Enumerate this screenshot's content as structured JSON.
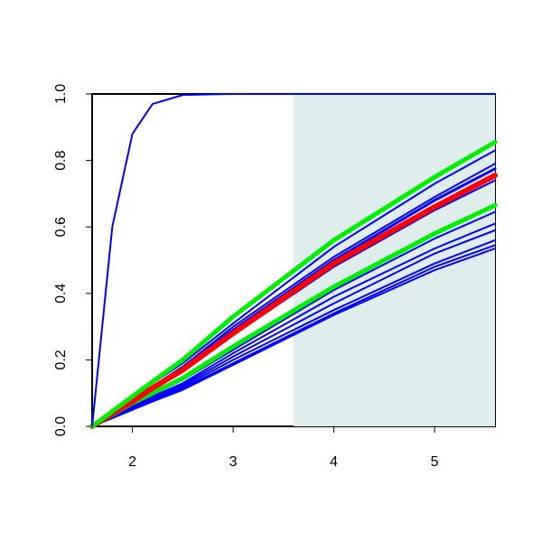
{
  "chart_data": {
    "type": "line",
    "x": [
      1.6,
      1.8,
      2,
      2.2,
      2.5,
      3,
      4,
      5,
      5.6
    ],
    "xlim": [
      1.6,
      5.6
    ],
    "ylim": [
      0,
      1
    ],
    "xticks": [
      2,
      3,
      4,
      5
    ],
    "yticks": [
      {
        "value": 0,
        "label": "0.0"
      },
      0.2,
      0.4,
      0.6,
      0.8,
      {
        "value": 1,
        "label": "1.0"
      }
    ],
    "shade": {
      "xlim": [
        3.6,
        5.6
      ],
      "color": "#e0eded"
    },
    "series": [
      {
        "color": "#0000ff",
        "width": 2,
        "values": [
          0,
          0.025,
          0.05,
          0.075,
          0.11,
          0.185,
          0.335,
          0.47,
          0.535
        ]
      },
      {
        "color": "#0000ff",
        "width": 2,
        "values": [
          0,
          0.025,
          0.05,
          0.078,
          0.115,
          0.19,
          0.34,
          0.48,
          0.545
        ]
      },
      {
        "color": "#0000ff",
        "width": 2,
        "values": [
          0,
          0.028,
          0.055,
          0.08,
          0.12,
          0.2,
          0.35,
          0.49,
          0.56
        ]
      },
      {
        "color": "#0000ff",
        "width": 2,
        "values": [
          0,
          0.03,
          0.06,
          0.085,
          0.125,
          0.21,
          0.37,
          0.52,
          0.59
        ]
      },
      {
        "color": "#0000ff",
        "width": 2,
        "values": [
          0,
          0.03,
          0.06,
          0.09,
          0.13,
          0.22,
          0.39,
          0.535,
          0.61
        ]
      },
      {
        "color": "#0000ff",
        "width": 2,
        "values": [
          0,
          0.033,
          0.065,
          0.095,
          0.14,
          0.23,
          0.41,
          0.565,
          0.645
        ]
      },
      {
        "color": "#00ee00",
        "width": 5,
        "values": [
          0,
          0.035,
          0.07,
          0.1,
          0.145,
          0.24,
          0.42,
          0.58,
          0.665
        ]
      },
      {
        "color": "#0000ff",
        "width": 2,
        "values": [
          0,
          0.038,
          0.075,
          0.11,
          0.165,
          0.275,
          0.48,
          0.65,
          0.74
        ]
      },
      {
        "color": "#0000ff",
        "width": 3,
        "values": [
          0,
          0.04,
          0.08,
          0.12,
          0.175,
          0.29,
          0.5,
          0.68,
          0.775
        ]
      },
      {
        "color": "#0000ff",
        "width": 2,
        "values": [
          0,
          0.04,
          0.08,
          0.12,
          0.18,
          0.3,
          0.51,
          0.69,
          0.79
        ]
      },
      {
        "color": "#ff0000",
        "width": 6,
        "values": [
          0,
          0.038,
          0.075,
          0.115,
          0.17,
          0.28,
          0.49,
          0.66,
          0.755
        ]
      },
      {
        "color": "#0000ff",
        "width": 2,
        "values": [
          0,
          0.043,
          0.085,
          0.13,
          0.19,
          0.31,
          0.54,
          0.73,
          0.83
        ]
      },
      {
        "color": "#00ee00",
        "width": 5,
        "values": [
          0,
          0.045,
          0.09,
          0.135,
          0.2,
          0.33,
          0.56,
          0.75,
          0.855
        ]
      },
      {
        "color": "#0000ff",
        "width": 2,
        "values": [
          0,
          0.6,
          0.88,
          0.97,
          0.997,
          1,
          1,
          1,
          1
        ]
      }
    ]
  }
}
